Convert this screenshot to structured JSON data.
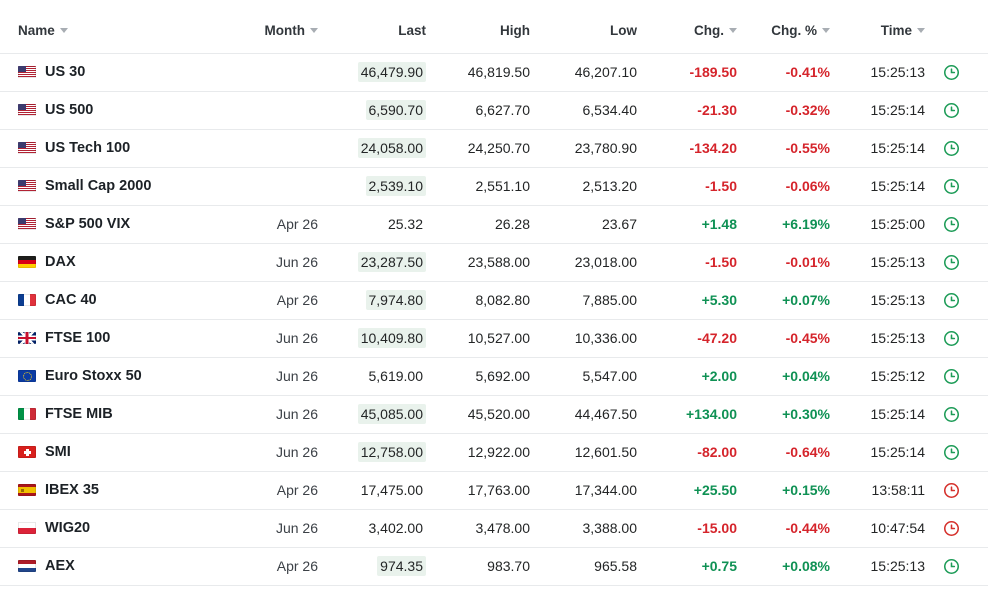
{
  "colors": {
    "positive": "#0f9154",
    "negative": "#d5242b",
    "clock_open": "#1e9c58",
    "clock_delayed": "#d5312c",
    "last_flash_bg": "#e9f2ec",
    "divider": "#e8eaec"
  },
  "table": {
    "columns": [
      {
        "key": "name",
        "label": "Name",
        "sortable": true,
        "align": "left"
      },
      {
        "key": "month",
        "label": "Month",
        "sortable": true,
        "align": "right"
      },
      {
        "key": "last",
        "label": "Last",
        "sortable": false,
        "align": "right"
      },
      {
        "key": "high",
        "label": "High",
        "sortable": false,
        "align": "right"
      },
      {
        "key": "low",
        "label": "Low",
        "sortable": false,
        "align": "right"
      },
      {
        "key": "chg",
        "label": "Chg.",
        "sortable": true,
        "align": "right"
      },
      {
        "key": "chg_pct",
        "label": "Chg. %",
        "sortable": true,
        "align": "right"
      },
      {
        "key": "time",
        "label": "Time",
        "sortable": true,
        "align": "right"
      }
    ],
    "rows": [
      {
        "name": "US 30",
        "flag": "us",
        "month": "",
        "last": "46,479.90",
        "last_flash": true,
        "high": "46,819.50",
        "low": "46,207.10",
        "chg": "-189.50",
        "chg_pct": "-0.41%",
        "direction": "down",
        "time": "15:25:13",
        "clock": "green"
      },
      {
        "name": "US 500",
        "flag": "us",
        "month": "",
        "last": "6,590.70",
        "last_flash": true,
        "high": "6,627.70",
        "low": "6,534.40",
        "chg": "-21.30",
        "chg_pct": "-0.32%",
        "direction": "down",
        "time": "15:25:14",
        "clock": "green"
      },
      {
        "name": "US Tech 100",
        "flag": "us",
        "month": "",
        "last": "24,058.00",
        "last_flash": true,
        "high": "24,250.70",
        "low": "23,780.90",
        "chg": "-134.20",
        "chg_pct": "-0.55%",
        "direction": "down",
        "time": "15:25:14",
        "clock": "green"
      },
      {
        "name": "Small Cap 2000",
        "flag": "us",
        "month": "",
        "last": "2,539.10",
        "last_flash": true,
        "high": "2,551.10",
        "low": "2,513.20",
        "chg": "-1.50",
        "chg_pct": "-0.06%",
        "direction": "down",
        "time": "15:25:14",
        "clock": "green"
      },
      {
        "name": "S&P 500 VIX",
        "flag": "us",
        "month": "Apr 26",
        "last": "25.32",
        "last_flash": false,
        "high": "26.28",
        "low": "23.67",
        "chg": "+1.48",
        "chg_pct": "+6.19%",
        "direction": "up",
        "time": "15:25:00",
        "clock": "green"
      },
      {
        "name": "DAX",
        "flag": "de",
        "month": "Jun 26",
        "last": "23,287.50",
        "last_flash": true,
        "high": "23,588.00",
        "low": "23,018.00",
        "chg": "-1.50",
        "chg_pct": "-0.01%",
        "direction": "down",
        "time": "15:25:13",
        "clock": "green"
      },
      {
        "name": "CAC 40",
        "flag": "fr",
        "month": "Apr 26",
        "last": "7,974.80",
        "last_flash": true,
        "high": "8,082.80",
        "low": "7,885.00",
        "chg": "+5.30",
        "chg_pct": "+0.07%",
        "direction": "up",
        "time": "15:25:13",
        "clock": "green"
      },
      {
        "name": "FTSE 100",
        "flag": "gb",
        "month": "Jun 26",
        "last": "10,409.80",
        "last_flash": true,
        "high": "10,527.00",
        "low": "10,336.00",
        "chg": "-47.20",
        "chg_pct": "-0.45%",
        "direction": "down",
        "time": "15:25:13",
        "clock": "green"
      },
      {
        "name": "Euro Stoxx 50",
        "flag": "eu",
        "month": "Jun 26",
        "last": "5,619.00",
        "last_flash": false,
        "high": "5,692.00",
        "low": "5,547.00",
        "chg": "+2.00",
        "chg_pct": "+0.04%",
        "direction": "up",
        "time": "15:25:12",
        "clock": "green"
      },
      {
        "name": "FTSE MIB",
        "flag": "it",
        "month": "Jun 26",
        "last": "45,085.00",
        "last_flash": true,
        "high": "45,520.00",
        "low": "44,467.50",
        "chg": "+134.00",
        "chg_pct": "+0.30%",
        "direction": "up",
        "time": "15:25:14",
        "clock": "green"
      },
      {
        "name": "SMI",
        "flag": "ch",
        "month": "Jun 26",
        "last": "12,758.00",
        "last_flash": true,
        "high": "12,922.00",
        "low": "12,601.50",
        "chg": "-82.00",
        "chg_pct": "-0.64%",
        "direction": "down",
        "time": "15:25:14",
        "clock": "green"
      },
      {
        "name": "IBEX 35",
        "flag": "es",
        "month": "Apr 26",
        "last": "17,475.00",
        "last_flash": false,
        "high": "17,763.00",
        "low": "17,344.00",
        "chg": "+25.50",
        "chg_pct": "+0.15%",
        "direction": "up",
        "time": "13:58:11",
        "clock": "red"
      },
      {
        "name": "WIG20",
        "flag": "pl",
        "month": "Jun 26",
        "last": "3,402.00",
        "last_flash": false,
        "high": "3,478.00",
        "low": "3,388.00",
        "chg": "-15.00",
        "chg_pct": "-0.44%",
        "direction": "down",
        "time": "10:47:54",
        "clock": "red"
      },
      {
        "name": "AEX",
        "flag": "nl",
        "month": "Apr 26",
        "last": "974.35",
        "last_flash": true,
        "high": "983.70",
        "low": "965.58",
        "chg": "+0.75",
        "chg_pct": "+0.08%",
        "direction": "up",
        "time": "15:25:13",
        "clock": "green"
      }
    ]
  }
}
